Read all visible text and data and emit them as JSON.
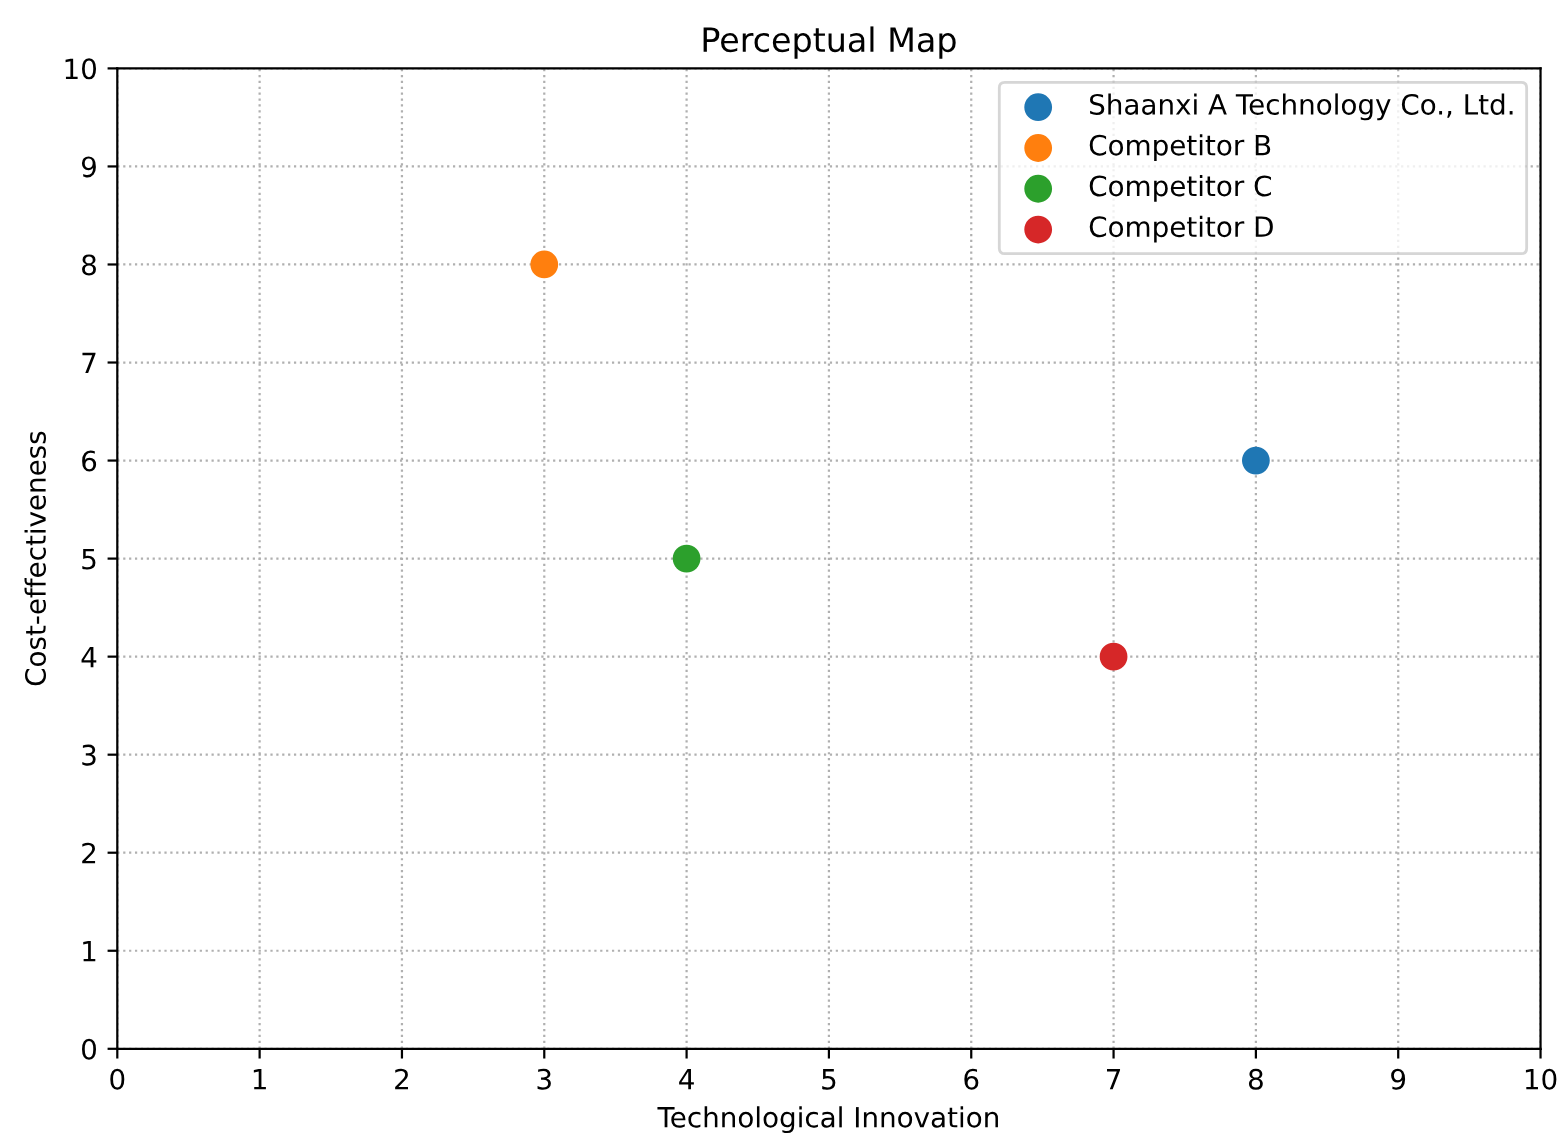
{
  "chart_data": {
    "type": "scatter",
    "title": "Perceptual Map",
    "xlabel": "Technological Innovation",
    "ylabel": "Cost-effectiveness",
    "series": [
      {
        "name": "Shaanxi A Technology Co., Ltd.",
        "color": "#1f77b4",
        "x": [
          8
        ],
        "values": [
          6
        ]
      },
      {
        "name": "Competitor B",
        "color": "#ff7f0e",
        "x": [
          3
        ],
        "values": [
          8
        ]
      },
      {
        "name": "Competitor C",
        "color": "#2ca02c",
        "x": [
          4
        ],
        "values": [
          5
        ]
      },
      {
        "name": "Competitor D",
        "color": "#d62728",
        "x": [
          7
        ],
        "values": [
          4
        ]
      }
    ],
    "xlim": [
      0,
      10
    ],
    "ylim": [
      0,
      10
    ],
    "xticks": [
      0,
      1,
      2,
      3,
      4,
      5,
      6,
      7,
      8,
      9,
      10
    ],
    "yticks": [
      0,
      1,
      2,
      3,
      4,
      5,
      6,
      7,
      8,
      9,
      10
    ],
    "grid": true,
    "legend": "top right",
    "marker": "circle"
  }
}
